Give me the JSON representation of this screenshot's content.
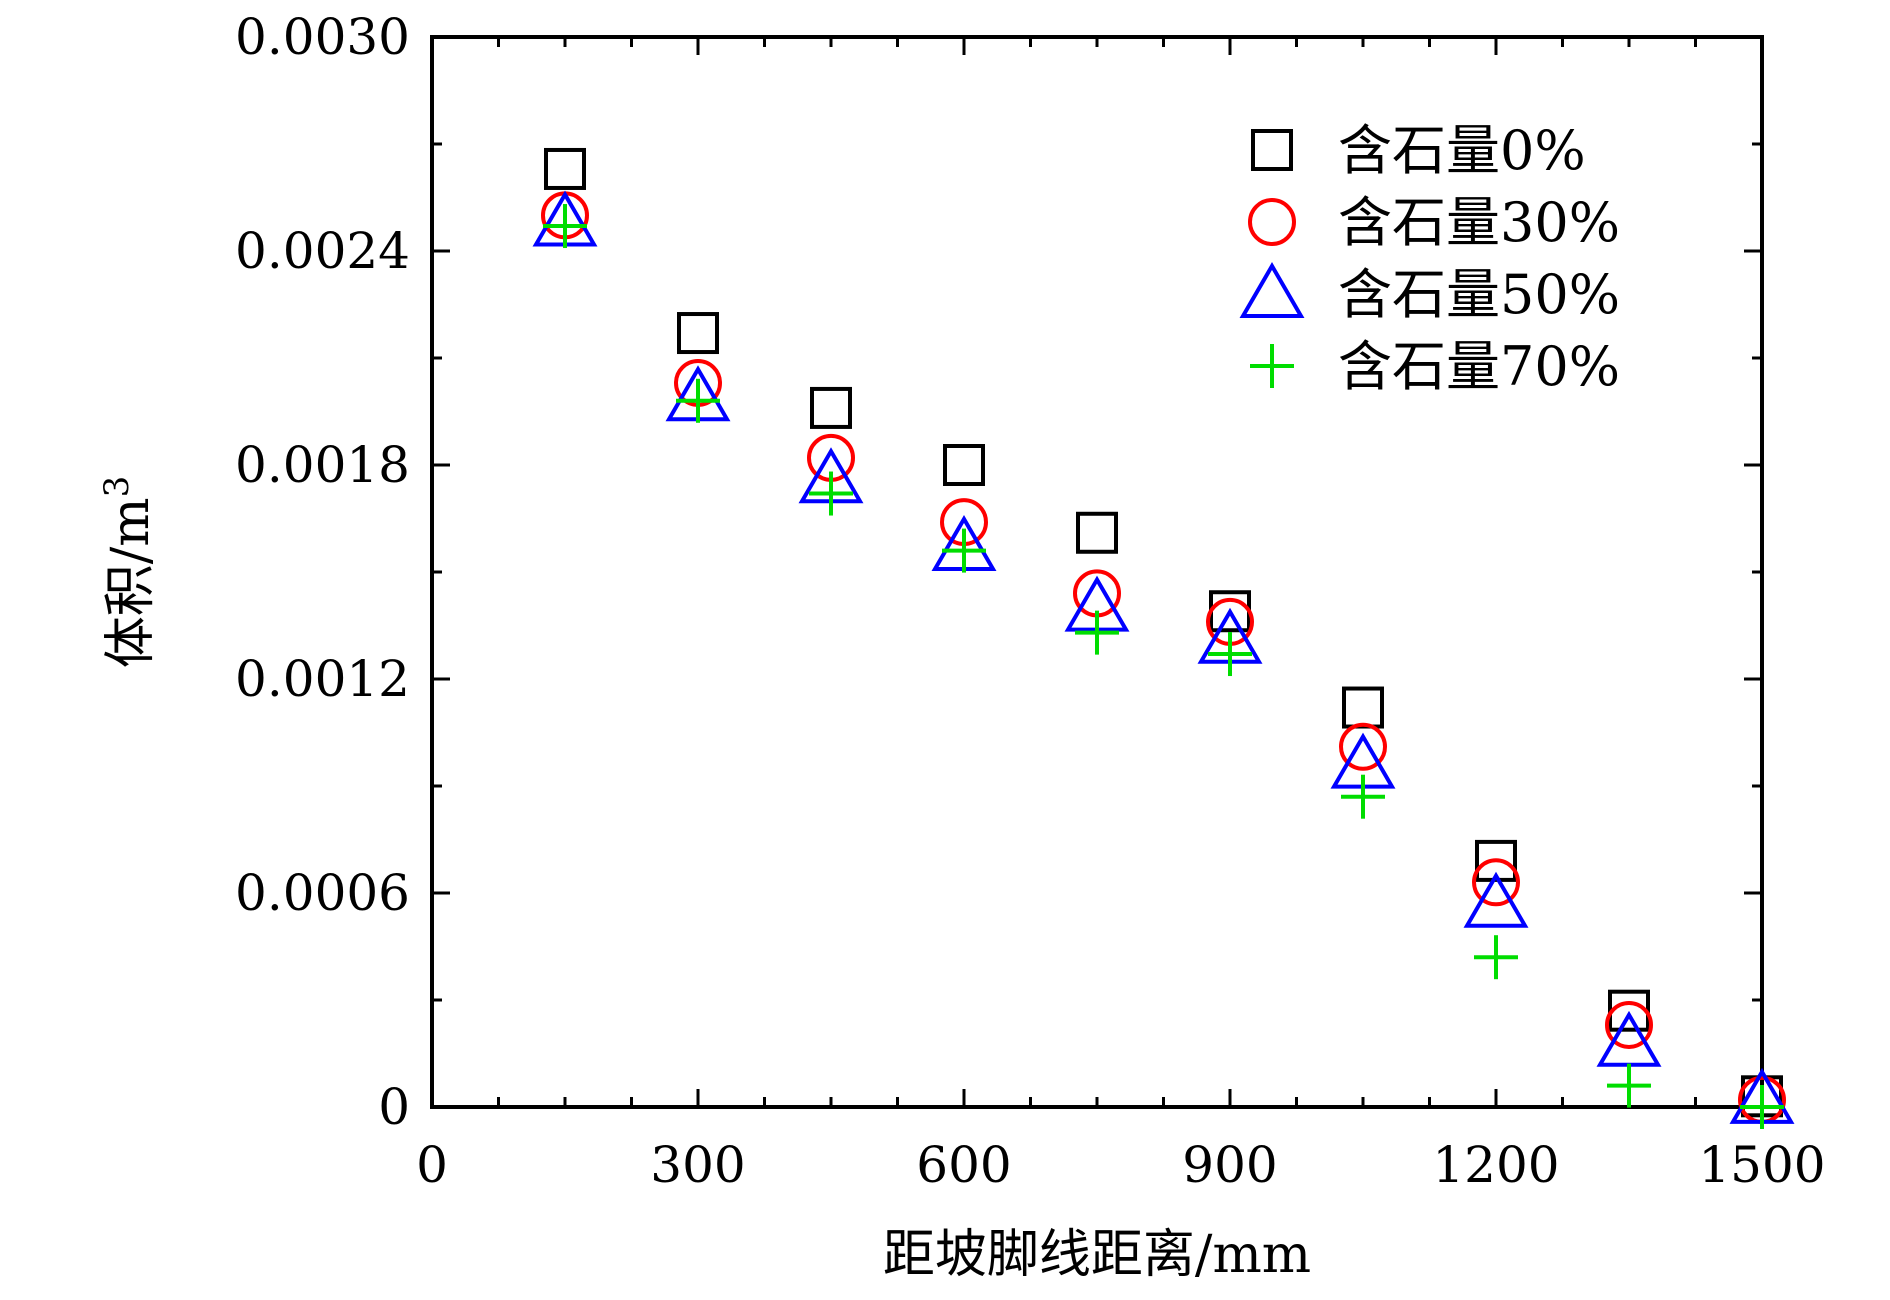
{
  "chart_data": {
    "type": "scatter",
    "xlabel": "距坡脚线距离/mm",
    "ylabel": "体积/m",
    "ylabel_superscript": "3",
    "xlim": [
      0,
      1500
    ],
    "ylim": [
      0,
      0.003
    ],
    "x_ticks": [
      0,
      300,
      600,
      900,
      1200,
      1500
    ],
    "x_tick_labels": [
      "0",
      "300",
      "600",
      "900",
      "1200",
      "1500"
    ],
    "y_ticks": [
      0,
      0.0006,
      0.0012,
      0.0018,
      0.0024,
      0.003
    ],
    "y_tick_labels": [
      "0",
      "0.0006",
      "0.0012",
      "0.0018",
      "0.0024",
      "0.0030"
    ],
    "grid": false,
    "legend_position": "top-right",
    "x": [
      150,
      300,
      450,
      600,
      750,
      900,
      1050,
      1200,
      1350,
      1500
    ],
    "series": [
      {
        "name": "含石量0%",
        "marker": "square",
        "color": "#000000",
        "values": [
          0.00263,
          0.00217,
          0.00196,
          0.0018,
          0.00161,
          0.00139,
          0.00112,
          0.00069,
          0.00027,
          3e-05
        ]
      },
      {
        "name": "含石量30%",
        "marker": "circle",
        "color": "#ff0000",
        "values": [
          0.0025,
          0.00203,
          0.00182,
          0.00164,
          0.00144,
          0.00136,
          0.00101,
          0.00063,
          0.00023,
          2e-05
        ]
      },
      {
        "name": "含石量50%",
        "marker": "triangle",
        "color": "#0000ff",
        "values": [
          0.00248,
          0.00199,
          0.00176,
          0.00157,
          0.0014,
          0.00131,
          0.00096,
          0.00057,
          0.00018,
          2e-05
        ]
      },
      {
        "name": "含石量70%",
        "marker": "plus",
        "color": "#00dd00",
        "values": [
          0.00247,
          0.00198,
          0.00172,
          0.00156,
          0.00133,
          0.00127,
          0.00087,
          0.00042,
          6e-05,
          0.0
        ]
      }
    ]
  }
}
